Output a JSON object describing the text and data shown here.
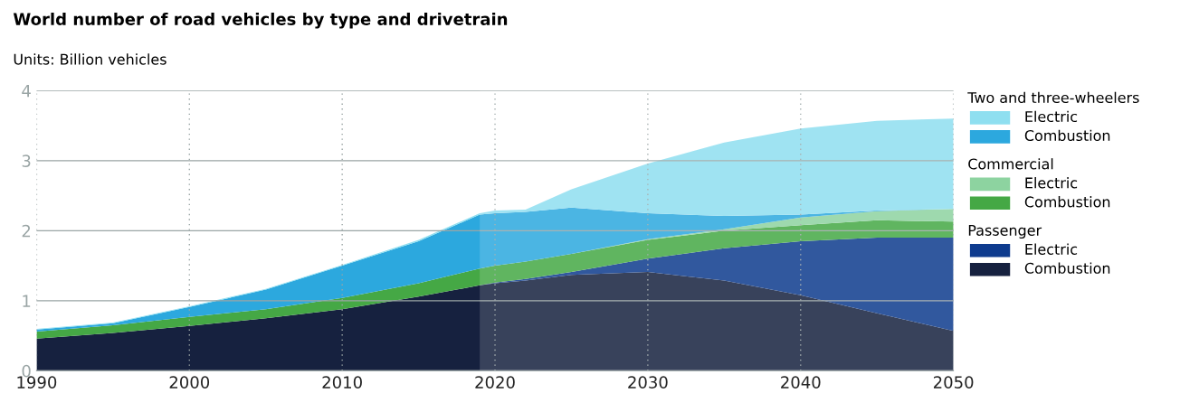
{
  "chart_data": {
    "type": "area",
    "stacked": true,
    "title": "World number of road vehicles by type and drivetrain",
    "subtitle": "Units: Billion vehicles",
    "x": [
      1990,
      1995,
      2000,
      2005,
      2010,
      2015,
      2019,
      2020,
      2022,
      2025,
      2030,
      2035,
      2040,
      2045,
      2050
    ],
    "xlim": [
      1990,
      2050
    ],
    "xticks": [
      1990,
      2000,
      2010,
      2020,
      2030,
      2040,
      2050
    ],
    "ylim": [
      0,
      4
    ],
    "yticks": [
      0,
      1,
      2,
      3,
      4
    ],
    "grid": true,
    "legend": "right",
    "annotations": [
      "Two and three-wheelers",
      "Commercial",
      "Passenger"
    ],
    "bands": [
      {
        "axis": "x",
        "from": 2019,
        "to": 2050,
        "color": "#ffffff"
      }
    ],
    "series": [
      {
        "name": "Combustion",
        "color": "#16213f",
        "values": [
          0.46,
          0.54,
          0.64,
          0.75,
          0.88,
          1.06,
          1.22,
          1.25,
          1.29,
          1.37,
          1.41,
          1.29,
          1.08,
          0.82,
          0.57
        ]
      },
      {
        "name": "Electric",
        "color": "#0e3b8e",
        "values": [
          0,
          0,
          0,
          0,
          0,
          0,
          0,
          0.01,
          0.02,
          0.04,
          0.19,
          0.46,
          0.77,
          1.08,
          1.33
        ]
      },
      {
        "name": "Combustion",
        "color": "#45a845",
        "values": [
          0.1,
          0.11,
          0.13,
          0.13,
          0.16,
          0.19,
          0.24,
          0.24,
          0.25,
          0.26,
          0.27,
          0.25,
          0.23,
          0.25,
          0.23
        ]
      },
      {
        "name": "Electric",
        "color": "#8dd3a0",
        "values": [
          0,
          0,
          0,
          0,
          0,
          0,
          0,
          0,
          0,
          0,
          0.01,
          0.02,
          0.11,
          0.13,
          0.18
        ]
      },
      {
        "name": "Combustion",
        "color": "#2ca8de",
        "values": [
          0.03,
          0.03,
          0.14,
          0.28,
          0.46,
          0.6,
          0.77,
          0.75,
          0.71,
          0.66,
          0.37,
          0.19,
          0.04,
          0.01,
          0
        ]
      },
      {
        "name": "Electric",
        "color": "#8fdff0",
        "values": [
          0.01,
          0.01,
          0.01,
          0.01,
          0.01,
          0.02,
          0.02,
          0.04,
          0.03,
          0.26,
          0.71,
          1.05,
          1.23,
          1.28,
          1.29
        ]
      }
    ]
  }
}
